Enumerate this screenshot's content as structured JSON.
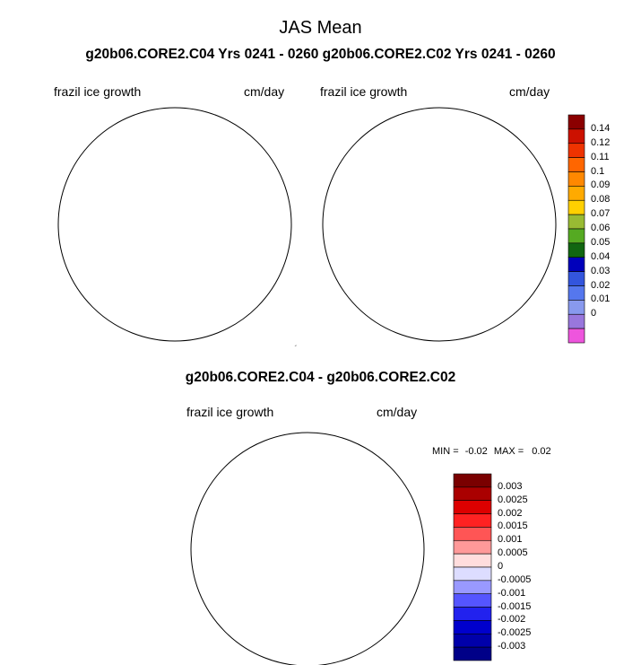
{
  "title": "JAS Mean",
  "subtitle": "g20b06.CORE2.C04  Yrs 0241 - 0260 g20b06.CORE2.C02  Yrs 0241 - 0260",
  "diff_title": "g20b06.CORE2.C04 - g20b06.CORE2.C02",
  "panels": [
    {
      "variable": "frazil ice growth",
      "units": "cm/day"
    },
    {
      "variable": "frazil ice growth",
      "units": "cm/day"
    },
    {
      "variable": "frazil ice growth",
      "units": "cm/day"
    }
  ],
  "minmax": {
    "min_label": "MIN =",
    "min": "-0.02",
    "max_label": "MAX =",
    "max": "0.02"
  },
  "colorbar_top": {
    "labels": [
      "0.14",
      "0.12",
      "0.11",
      "0.1",
      "0.09",
      "0.08",
      "0.07",
      "0.06",
      "0.05",
      "0.04",
      "0.03",
      "0.02",
      "0.01",
      "0"
    ],
    "colors": [
      "#8b0000",
      "#cc1100",
      "#ee3300",
      "#ff6600",
      "#ff8800",
      "#ffaa00",
      "#ffd000",
      "#99bb33",
      "#55aa22",
      "#116611",
      "#0000bb",
      "#3355dd",
      "#5577ee",
      "#8899ee",
      "#9977dd",
      "#ee55dd"
    ]
  },
  "colorbar_diff": {
    "labels": [
      "0.003",
      "0.0025",
      "0.002",
      "0.0015",
      "0.001",
      "0.0005",
      "0",
      "-0.0005",
      "-0.001",
      "-0.0015",
      "-0.002",
      "-0.0025",
      "-0.003"
    ],
    "colors": [
      "#7a0000",
      "#aa0000",
      "#dd0000",
      "#ff2222",
      "#ff5555",
      "#ff9999",
      "#ffdddd",
      "#ddddff",
      "#9999ff",
      "#5555ff",
      "#2222ee",
      "#0000cc",
      "#0000aa",
      "#000088"
    ]
  },
  "map_colors": {
    "land": "#c8c8c8",
    "ocean": "#ffffff",
    "outline": "#000000"
  }
}
